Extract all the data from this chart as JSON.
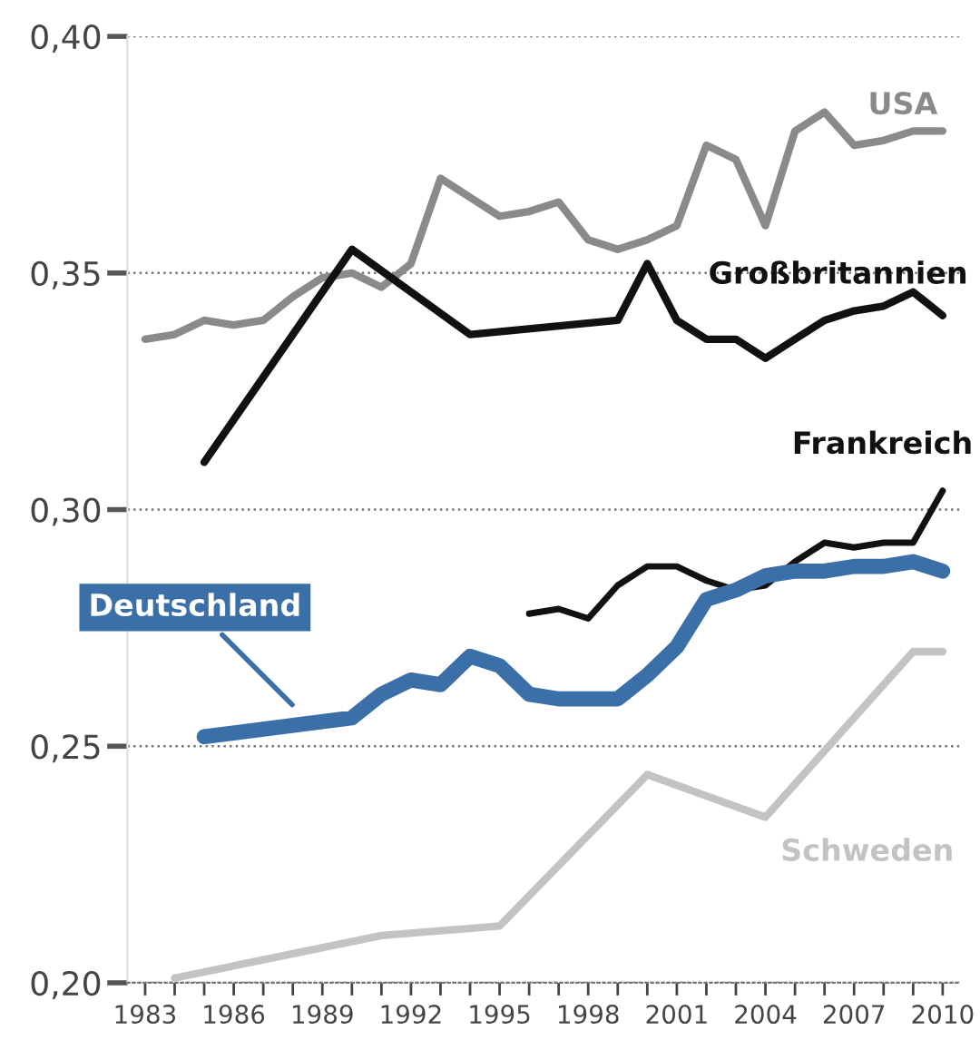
{
  "chart_data": {
    "type": "line",
    "series": [
      {
        "name": "USA",
        "color": "#8a8a8a",
        "x": [
          1983,
          1984,
          1985,
          1986,
          1987,
          1988,
          1989,
          1990,
          1991,
          1992,
          1993,
          1994,
          1995,
          1996,
          1997,
          1998,
          1999,
          2000,
          2001,
          2002,
          2003,
          2004,
          2005,
          2006,
          2007,
          2008,
          2009,
          2010
        ],
        "values": [
          0.336,
          0.337,
          0.34,
          0.339,
          0.34,
          0.345,
          0.349,
          0.35,
          0.347,
          0.352,
          0.37,
          0.366,
          0.362,
          0.363,
          0.365,
          0.357,
          0.355,
          0.357,
          0.36,
          0.377,
          0.374,
          0.36,
          0.38,
          0.384,
          0.377,
          0.378,
          0.38,
          0.38
        ]
      },
      {
        "name": "Großbritannien",
        "color": "#111111",
        "x": [
          1985,
          1990,
          1994,
          1999,
          2000,
          2001,
          2002,
          2003,
          2004,
          2005,
          2006,
          2007,
          2008,
          2009,
          2010
        ],
        "values": [
          0.31,
          0.355,
          0.337,
          0.34,
          0.352,
          0.34,
          0.336,
          0.336,
          0.332,
          0.336,
          0.34,
          0.342,
          0.343,
          0.346,
          0.341
        ]
      },
      {
        "name": "Frankreich",
        "color": "#111111",
        "x": [
          1996,
          1997,
          1998,
          1999,
          2000,
          2001,
          2002,
          2003,
          2004,
          2005,
          2006,
          2007,
          2008,
          2009,
          2010
        ],
        "values": [
          0.278,
          0.279,
          0.277,
          0.284,
          0.288,
          0.288,
          0.285,
          0.283,
          0.284,
          0.289,
          0.293,
          0.292,
          0.293,
          0.293,
          0.304
        ]
      },
      {
        "name": "Deutschland",
        "color": "#3b6fa8",
        "x": [
          1985,
          1990,
          1991,
          1992,
          1993,
          1994,
          1995,
          1996,
          1997,
          1998,
          1999,
          2000,
          2001,
          2002,
          2003,
          2004,
          2005,
          2006,
          2007,
          2008,
          2009,
          2010
        ],
        "values": [
          0.252,
          0.256,
          0.261,
          0.264,
          0.263,
          0.269,
          0.267,
          0.261,
          0.26,
          0.26,
          0.26,
          0.265,
          0.271,
          0.281,
          0.283,
          0.286,
          0.287,
          0.287,
          0.288,
          0.288,
          0.289,
          0.287
        ]
      },
      {
        "name": "Schweden",
        "color": "#c3c3c3",
        "x": [
          1984,
          1991,
          1995,
          2000,
          2004,
          2009,
          2010
        ],
        "values": [
          0.201,
          0.21,
          0.212,
          0.244,
          0.235,
          0.27,
          0.27
        ]
      }
    ],
    "xlim": [
      1982.4,
      2010.6
    ],
    "xticks": [
      {
        "value": 1983,
        "label": "1983"
      },
      {
        "value": 1984,
        "label": null
      },
      {
        "value": 1985,
        "label": null
      },
      {
        "value": 1986,
        "label": "1986"
      },
      {
        "value": 1987,
        "label": null
      },
      {
        "value": 1988,
        "label": null
      },
      {
        "value": 1989,
        "label": "1989"
      },
      {
        "value": 1990,
        "label": null
      },
      {
        "value": 1991,
        "label": null
      },
      {
        "value": 1992,
        "label": "1992"
      },
      {
        "value": 1993,
        "label": null
      },
      {
        "value": 1994,
        "label": null
      },
      {
        "value": 1995,
        "label": "1995"
      },
      {
        "value": 1996,
        "label": null
      },
      {
        "value": 1997,
        "label": null
      },
      {
        "value": 1998,
        "label": "1998"
      },
      {
        "value": 1999,
        "label": null
      },
      {
        "value": 2000,
        "label": null
      },
      {
        "value": 2001,
        "label": "2001"
      },
      {
        "value": 2002,
        "label": null
      },
      {
        "value": 2003,
        "label": null
      },
      {
        "value": 2004,
        "label": "2004"
      },
      {
        "value": 2005,
        "label": null
      },
      {
        "value": 2006,
        "label": null
      },
      {
        "value": 2007,
        "label": "2007"
      },
      {
        "value": 2008,
        "label": null
      },
      {
        "value": 2009,
        "label": null
      },
      {
        "value": 2010,
        "label": "2010"
      }
    ],
    "ylim": [
      0.2,
      0.4
    ],
    "yticks": [
      {
        "value": 0.2,
        "label": "0,20"
      },
      {
        "value": 0.25,
        "label": "0,25"
      },
      {
        "value": 0.3,
        "label": "0,30"
      },
      {
        "value": 0.35,
        "label": "0,35"
      },
      {
        "value": 0.4,
        "label": "0,40"
      }
    ],
    "grid": "y",
    "legend": false,
    "marker": "none",
    "line_style": "solid"
  }
}
